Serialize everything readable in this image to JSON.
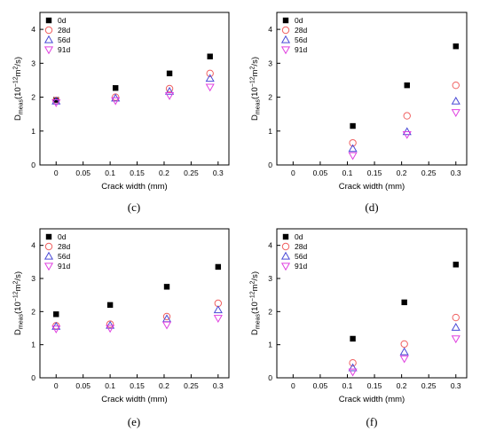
{
  "chart_data": [
    {
      "type": "scatter",
      "panel": "(c)",
      "xlabel": "Crack width (mm)",
      "ylabel_main": "D",
      "ylabel_sub": "meas",
      "ylabel_rest": "(10",
      "ylabel_exp": "−12",
      "ylabel_unit": "m",
      "ylabel_unit_exp": "2",
      "ylabel_end": "/s)",
      "xlim": [
        -0.03,
        0.32
      ],
      "ylim": [
        0,
        4.5
      ],
      "xticks": [
        "0",
        "0.05",
        "0.1",
        "0.15",
        "0.2",
        "0.25",
        "0.3"
      ],
      "yticks": [
        "0",
        "1",
        "2",
        "3",
        "4"
      ],
      "legend_position": "top-left",
      "series": [
        {
          "name": "0d",
          "marker": "square",
          "color": "#000000",
          "x": [
            0,
            0.11,
            0.21,
            0.285
          ],
          "y": [
            1.92,
            2.27,
            2.7,
            3.2
          ]
        },
        {
          "name": "28d",
          "marker": "circle",
          "color": "#f06060",
          "x": [
            0,
            0.11,
            0.21,
            0.285
          ],
          "y": [
            1.9,
            2.0,
            2.25,
            2.7
          ]
        },
        {
          "name": "56d",
          "marker": "triangle-up",
          "color": "#4a4ad6",
          "x": [
            0,
            0.11,
            0.21,
            0.285
          ],
          "y": [
            1.88,
            1.97,
            2.17,
            2.55
          ]
        },
        {
          "name": "91d",
          "marker": "triangle-down",
          "color": "#e040e0",
          "x": [
            0,
            0.11,
            0.21,
            0.285
          ],
          "y": [
            1.84,
            1.9,
            2.05,
            2.3
          ]
        }
      ]
    },
    {
      "type": "scatter",
      "panel": "(d)",
      "xlabel": "Crack width (mm)",
      "ylabel_main": "D",
      "ylabel_sub": "meas",
      "ylabel_rest": "(10",
      "ylabel_exp": "−12",
      "ylabel_unit": "m",
      "ylabel_unit_exp": "2",
      "ylabel_end": "/s)",
      "xlim": [
        -0.03,
        0.32
      ],
      "ylim": [
        0,
        4.5
      ],
      "xticks": [
        "0",
        "0.05",
        "0.1",
        "0.15",
        "0.2",
        "0.25",
        "0.3"
      ],
      "yticks": [
        "0",
        "1",
        "2",
        "3",
        "4"
      ],
      "legend_position": "top-left",
      "series": [
        {
          "name": "0d",
          "marker": "square",
          "color": "#000000",
          "x": [
            0.11,
            0.21,
            0.3
          ],
          "y": [
            1.15,
            2.35,
            3.5
          ]
        },
        {
          "name": "28d",
          "marker": "circle",
          "color": "#f06060",
          "x": [
            0.11,
            0.21,
            0.3
          ],
          "y": [
            0.65,
            1.45,
            2.35
          ]
        },
        {
          "name": "56d",
          "marker": "triangle-up",
          "color": "#4a4ad6",
          "x": [
            0.11,
            0.21,
            0.3
          ],
          "y": [
            0.48,
            0.98,
            1.88
          ]
        },
        {
          "name": "91d",
          "marker": "triangle-down",
          "color": "#e040e0",
          "x": [
            0.11,
            0.21,
            0.3
          ],
          "y": [
            0.28,
            0.9,
            1.55
          ]
        }
      ]
    },
    {
      "type": "scatter",
      "panel": "(e)",
      "xlabel": "Crack width (mm)",
      "ylabel_main": "D",
      "ylabel_sub": "meas",
      "ylabel_rest": "(10",
      "ylabel_exp": "−12",
      "ylabel_unit": "m",
      "ylabel_unit_exp": "2",
      "ylabel_end": "/s)",
      "xlim": [
        -0.03,
        0.32
      ],
      "ylim": [
        0,
        4.5
      ],
      "xticks": [
        "0",
        "0.05",
        "0.1",
        "0.15",
        "0.2",
        "0.25",
        "0.3"
      ],
      "yticks": [
        "0",
        "1",
        "2",
        "3",
        "4"
      ],
      "legend_position": "top-left",
      "series": [
        {
          "name": "0d",
          "marker": "square",
          "color": "#000000",
          "x": [
            0,
            0.1,
            0.205,
            0.3
          ],
          "y": [
            1.92,
            2.2,
            2.75,
            3.35
          ]
        },
        {
          "name": "28d",
          "marker": "circle",
          "color": "#f06060",
          "x": [
            0,
            0.1,
            0.205,
            0.3
          ],
          "y": [
            1.57,
            1.62,
            1.85,
            2.25
          ]
        },
        {
          "name": "56d",
          "marker": "triangle-up",
          "color": "#4a4ad6",
          "x": [
            0,
            0.1,
            0.205,
            0.3
          ],
          "y": [
            1.55,
            1.58,
            1.78,
            2.05
          ]
        },
        {
          "name": "91d",
          "marker": "triangle-down",
          "color": "#e040e0",
          "x": [
            0,
            0.1,
            0.205,
            0.3
          ],
          "y": [
            1.48,
            1.5,
            1.6,
            1.8
          ]
        }
      ]
    },
    {
      "type": "scatter",
      "panel": "(f)",
      "xlabel": "Crack width (mm)",
      "ylabel_main": "D",
      "ylabel_sub": "meas",
      "ylabel_rest": "(10",
      "ylabel_exp": "−12",
      "ylabel_unit": "m",
      "ylabel_unit_exp": "2",
      "ylabel_end": "/s)",
      "xlim": [
        -0.03,
        0.32
      ],
      "ylim": [
        0,
        4.5
      ],
      "xticks": [
        "0",
        "0.05",
        "0.1",
        "0.15",
        "0.2",
        "0.25",
        "0.3"
      ],
      "yticks": [
        "0",
        "1",
        "2",
        "3",
        "4"
      ],
      "legend_position": "top-left",
      "series": [
        {
          "name": "0d",
          "marker": "square",
          "color": "#000000",
          "x": [
            0.11,
            0.205,
            0.3
          ],
          "y": [
            1.18,
            2.28,
            3.42
          ]
        },
        {
          "name": "28d",
          "marker": "circle",
          "color": "#f06060",
          "x": [
            0.11,
            0.205,
            0.3
          ],
          "y": [
            0.45,
            1.02,
            1.82
          ]
        },
        {
          "name": "56d",
          "marker": "triangle-up",
          "color": "#4a4ad6",
          "x": [
            0.11,
            0.205,
            0.3
          ],
          "y": [
            0.3,
            0.78,
            1.52
          ]
        },
        {
          "name": "91d",
          "marker": "triangle-down",
          "color": "#e040e0",
          "x": [
            0.11,
            0.205,
            0.3
          ],
          "y": [
            0.18,
            0.58,
            1.18
          ]
        }
      ]
    }
  ]
}
